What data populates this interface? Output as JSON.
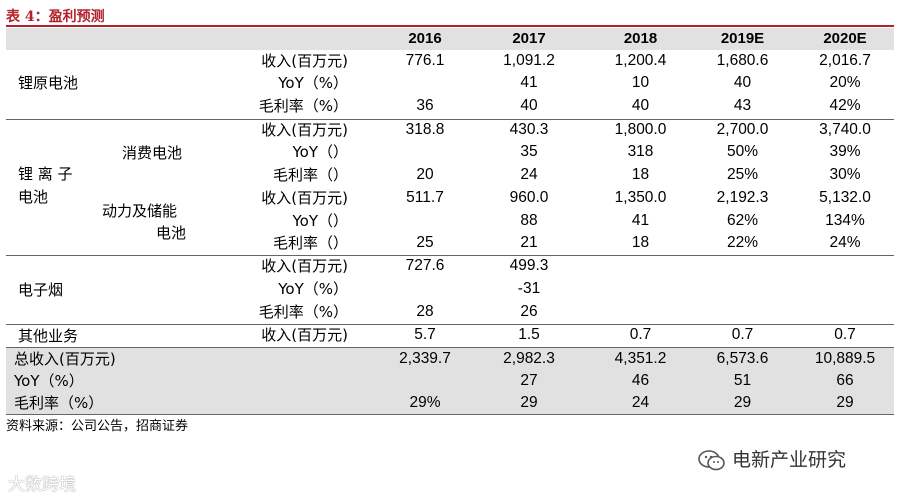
{
  "title": "表 4：盈利预测",
  "years": [
    "2016",
    "2017",
    "2018",
    "2019E",
    "2020E"
  ],
  "groups": {
    "li_yuan": "锂原电池",
    "li_ion_1": "锂 离 子",
    "li_ion_2": "电池",
    "consumer_1": "消费电池",
    "power_1": "动力及储能",
    "power_2": "电池",
    "ecig": "电子烟",
    "other": "其他业务"
  },
  "rows": [
    {
      "label": "收入(百万元)",
      "v": [
        "776.1",
        "1,091.2",
        "1,200.4",
        "1,680.6",
        "2,016.7"
      ]
    },
    {
      "label": "YoY（%）",
      "v": [
        "",
        "41",
        "10",
        "40",
        "20%"
      ]
    },
    {
      "label": "毛利率（%）",
      "v": [
        "36",
        "40",
        "40",
        "43",
        "42%"
      ]
    },
    {
      "label": "收入(百万元)",
      "v": [
        "318.8",
        "430.3",
        "1,800.0",
        "2,700.0",
        "3,740.0"
      ]
    },
    {
      "label": "YoY（）",
      "v": [
        "",
        "35",
        "318",
        "50%",
        "39%"
      ]
    },
    {
      "label": "毛利率（）",
      "v": [
        "20",
        "24",
        "18",
        "25%",
        "30%"
      ]
    },
    {
      "label": "收入(百万元)",
      "v": [
        "511.7",
        "960.0",
        "1,350.0",
        "2,192.3",
        "5,132.0"
      ]
    },
    {
      "label": "YoY（）",
      "v": [
        "",
        "88",
        "41",
        "62%",
        "134%"
      ]
    },
    {
      "label": "毛利率（）",
      "v": [
        "25",
        "21",
        "18",
        "22%",
        "24%"
      ]
    },
    {
      "label": "收入(百万元)",
      "v": [
        "727.6",
        "499.3",
        "",
        "",
        ""
      ]
    },
    {
      "label": "YoY（%）",
      "v": [
        "",
        "-31",
        "",
        "",
        ""
      ]
    },
    {
      "label": "毛利率（%）",
      "v": [
        "28",
        "26",
        "",
        "",
        ""
      ]
    },
    {
      "label": "收入(百万元)",
      "v": [
        "5.7",
        "1.5",
        "0.7",
        "0.7",
        "0.7"
      ]
    }
  ],
  "totals": [
    {
      "label": "总收入(百万元)",
      "v": [
        "2,339.7",
        "2,982.3",
        "4,351.2",
        "6,573.6",
        "10,889.5"
      ]
    },
    {
      "label": "YoY（%）",
      "v": [
        "",
        "27",
        "46",
        "51",
        "66"
      ]
    },
    {
      "label": "毛利率（%）",
      "v": [
        "29%",
        "29",
        "24",
        "29",
        "29"
      ]
    }
  ],
  "source": "资料来源：公司公告，招商证券",
  "watermark": "电新产业研究",
  "watermark2": "大数跨境",
  "colors": {
    "accent": "#b0222c",
    "shade": "#e1e1e1"
  }
}
